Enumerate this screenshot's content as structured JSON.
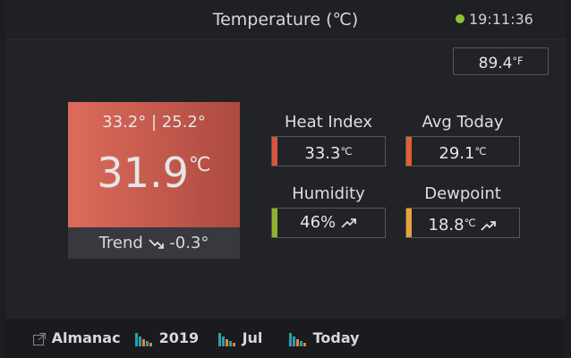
{
  "header": {
    "title": "Temperature (℃)",
    "time": "19:11:36"
  },
  "fahrenheit": {
    "value": "89.4",
    "unit": "°F"
  },
  "main": {
    "high_low": "33.2° | 25.2°",
    "value": "31.9",
    "unit": "℃",
    "trend_label": "Trend",
    "trend": "-0.3°"
  },
  "stats": [
    {
      "label": "Heat Index",
      "value": "33.3",
      "unit": "℃",
      "color": "#d9533f"
    },
    {
      "label": "Avg Today",
      "value": "29.1",
      "unit": "℃",
      "color": "#e0622f"
    },
    {
      "label": "Humidity",
      "value": "46%",
      "color": "#8fb32a"
    },
    {
      "label": "Dewpoint",
      "value": "18.8",
      "unit": "℃",
      "color": "#eba23a"
    }
  ],
  "footer": {
    "links": [
      "Almanac",
      "2019",
      "Jul",
      "Today"
    ]
  }
}
